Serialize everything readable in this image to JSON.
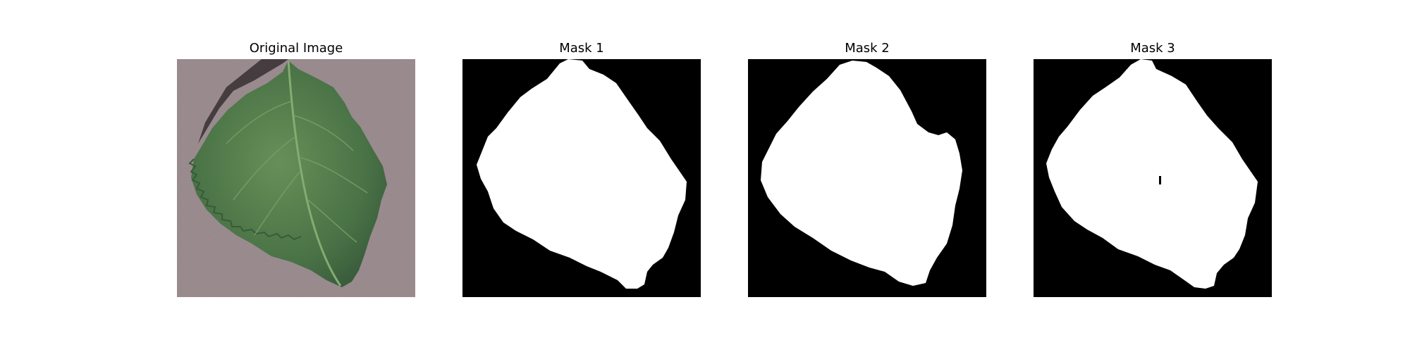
{
  "panels": [
    {
      "title": "Original Image",
      "kind": "photo"
    },
    {
      "title": "Mask 1",
      "kind": "mask"
    },
    {
      "title": "Mask 2",
      "kind": "mask"
    },
    {
      "title": "Mask 3",
      "kind": "mask"
    }
  ],
  "colors": {
    "background": "#9a8a8e",
    "leaf": "#3f6a3c",
    "leaf_light": "#5f8a4f",
    "vein": "#7ea86a",
    "shadow": "#2b2527",
    "mask_bg": "#000000",
    "mask_fg": "#ffffff"
  }
}
